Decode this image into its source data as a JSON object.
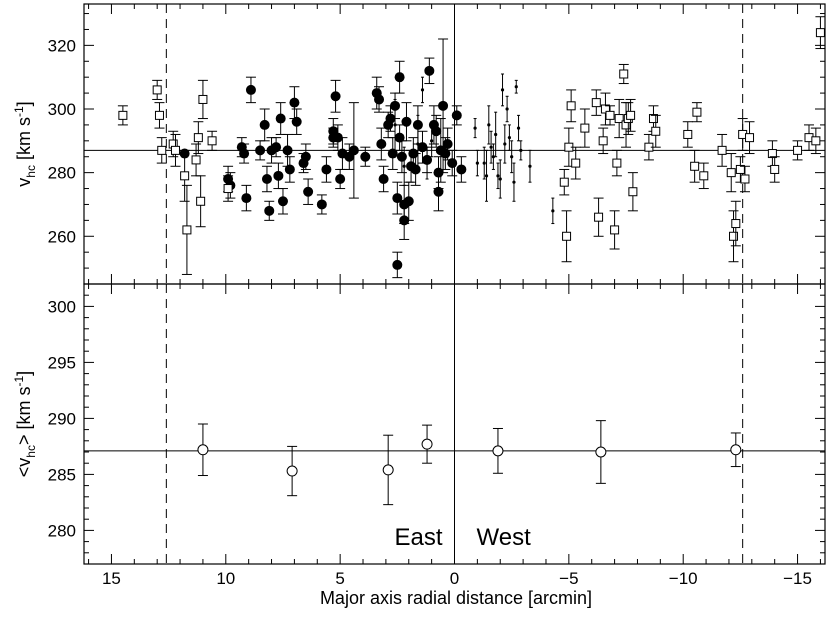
{
  "chart_data": [
    {
      "panel": "top",
      "type": "scatter",
      "title": "",
      "xlabel": "Major axis radial distance  [arcmin]",
      "ylabel": "v_hc  [km s^-1]",
      "ylabel_parts": {
        "main": "v",
        "sub": "hc",
        "unit_pre": "[km s",
        "unit_sup": "-1",
        "unit_post": "]"
      },
      "xlim": [
        16.2,
        -16.2
      ],
      "ylim": [
        245,
        333
      ],
      "x_ticks": [
        15,
        10,
        5,
        0,
        -5,
        -10,
        -15
      ],
      "x_tick_labels": [
        "15",
        "10",
        "5",
        "0",
        "−5",
        "−10",
        "−15"
      ],
      "y_ticks": [
        260,
        280,
        300,
        320
      ],
      "y_tick_labels": [
        "260",
        "280",
        "300",
        "320"
      ],
      "reference_line": 287,
      "center_line_x": 0,
      "dashed_lines_x": [
        12.6,
        -12.6
      ],
      "series": [
        {
          "name": "filled circles",
          "marker": "filled-circle",
          "points": [
            [
              11.8,
              286,
              0
            ],
            [
              9.9,
              278,
              4
            ],
            [
              9.8,
              276,
              4
            ],
            [
              9.3,
              288,
              3
            ],
            [
              9.2,
              286,
              3
            ],
            [
              9.1,
              272,
              4
            ],
            [
              8.9,
              306,
              4
            ],
            [
              8.5,
              287,
              3
            ],
            [
              8.3,
              295,
              5
            ],
            [
              8.2,
              278,
              4
            ],
            [
              8.1,
              268,
              3
            ],
            [
              8.0,
              287,
              4
            ],
            [
              7.8,
              288,
              3
            ],
            [
              7.7,
              279,
              4
            ],
            [
              7.6,
              297,
              5
            ],
            [
              7.5,
              271,
              4
            ],
            [
              7.3,
              287,
              5
            ],
            [
              7.2,
              281,
              4
            ],
            [
              7.0,
              302,
              5
            ],
            [
              6.9,
              296,
              4
            ],
            [
              6.6,
              283,
              3
            ],
            [
              6.5,
              285,
              4
            ],
            [
              6.4,
              274,
              4
            ],
            [
              5.8,
              270,
              3
            ],
            [
              5.6,
              281,
              4
            ],
            [
              5.3,
              293,
              4
            ],
            [
              5.3,
              291,
              3
            ],
            [
              5.2,
              304,
              5
            ],
            [
              5.1,
              291,
              4
            ],
            [
              5.0,
              278,
              3
            ],
            [
              4.9,
              286,
              5
            ],
            [
              4.6,
              285,
              4
            ],
            [
              4.4,
              287,
              15
            ],
            [
              3.9,
              285,
              3
            ],
            [
              3.4,
              305,
              5
            ],
            [
              3.3,
              303,
              4
            ],
            [
              3.2,
              289,
              5
            ],
            [
              3.1,
              278,
              4
            ],
            [
              2.9,
              295,
              4
            ],
            [
              2.8,
              297,
              4
            ],
            [
              2.7,
              286,
              5
            ],
            [
              2.6,
              301,
              4
            ],
            [
              2.5,
              272,
              5
            ],
            [
              2.5,
              251,
              4
            ],
            [
              2.4,
              310,
              5
            ],
            [
              2.4,
              291,
              4
            ],
            [
              2.3,
              285,
              5
            ],
            [
              2.2,
              265,
              6
            ],
            [
              2.2,
              270,
              6
            ],
            [
              2.1,
              296,
              6
            ],
            [
              2.0,
              271,
              6
            ],
            [
              1.9,
              282,
              5
            ],
            [
              1.8,
              286,
              5
            ],
            [
              1.7,
              281,
              5
            ],
            [
              1.6,
              295,
              6
            ],
            [
              1.4,
              288,
              5
            ],
            [
              1.2,
              284,
              4
            ],
            [
              1.1,
              312,
              4
            ],
            [
              0.9,
              295,
              6
            ],
            [
              0.8,
              293,
              5
            ],
            [
              0.7,
              280,
              5
            ],
            [
              0.7,
              274,
              6
            ],
            [
              0.6,
              287,
              10
            ],
            [
              0.5,
              301,
              21
            ],
            [
              0.4,
              286,
              5
            ],
            [
              0.3,
              289,
              5
            ],
            [
              0.1,
              283,
              4
            ],
            [
              -0.1,
              298,
              3
            ],
            [
              -0.3,
              281,
              4
            ]
          ]
        },
        {
          "name": "small dots",
          "marker": "small-dot",
          "points": [
            [
              2.6,
              295,
              8
            ],
            [
              2.2,
              282,
              6
            ],
            [
              1.6,
              289,
              9
            ],
            [
              1.4,
              306,
              4
            ],
            [
              1.2,
              283,
              5
            ],
            [
              1.0,
              290,
              5
            ],
            [
              -0.9,
              294,
              3
            ],
            [
              -1.0,
              283,
              4
            ],
            [
              -1.3,
              283,
              5
            ],
            [
              -1.4,
              279,
              8
            ],
            [
              -1.5,
              295,
              6
            ],
            [
              -1.6,
              288,
              5
            ],
            [
              -1.7,
              285,
              4
            ],
            [
              -1.8,
              292,
              7
            ],
            [
              -1.9,
              279,
              4
            ],
            [
              -2.0,
              278,
              6
            ],
            [
              -2.1,
              306,
              5
            ],
            [
              -2.2,
              289,
              6
            ],
            [
              -2.3,
              300,
              4
            ],
            [
              -2.4,
              291,
              4
            ],
            [
              -2.5,
              285,
              5
            ],
            [
              -2.6,
              277,
              6
            ],
            [
              -2.7,
              307,
              2
            ],
            [
              -2.8,
              294,
              4
            ],
            [
              -2.9,
              287,
              3
            ],
            [
              -3.3,
              282,
              5
            ],
            [
              -4.3,
              268,
              4
            ]
          ]
        },
        {
          "name": "open squares",
          "marker": "open-square",
          "points": [
            [
              14.5,
              298,
              3
            ],
            [
              13.0,
              306,
              3
            ],
            [
              12.9,
              298,
              4
            ],
            [
              12.8,
              287,
              4
            ],
            [
              12.3,
              289,
              4
            ],
            [
              12.2,
              287,
              5
            ],
            [
              11.8,
              279,
              8
            ],
            [
              11.7,
              262,
              14
            ],
            [
              11.3,
              284,
              5
            ],
            [
              11.2,
              291,
              5
            ],
            [
              11.1,
              271,
              8
            ],
            [
              11.0,
              303,
              6
            ],
            [
              10.6,
              290,
              3
            ],
            [
              9.9,
              275,
              4
            ],
            [
              -5.0,
              288,
              6
            ],
            [
              -4.8,
              277,
              4
            ],
            [
              -4.9,
              260,
              8
            ],
            [
              -5.1,
              301,
              5
            ],
            [
              -5.3,
              283,
              5
            ],
            [
              -5.7,
              294,
              6
            ],
            [
              -6.2,
              302,
              4
            ],
            [
              -6.3,
              266,
              6
            ],
            [
              -6.5,
              290,
              4
            ],
            [
              -6.6,
              300,
              5
            ],
            [
              -6.8,
              298,
              3
            ],
            [
              -7.0,
              262,
              6
            ],
            [
              -7.1,
              283,
              4
            ],
            [
              -7.2,
              297,
              6
            ],
            [
              -7.4,
              311,
              3
            ],
            [
              -7.5,
              295,
              7
            ],
            [
              -7.6,
              297,
              5
            ],
            [
              -7.7,
              298,
              5
            ],
            [
              -7.8,
              274,
              6
            ],
            [
              -8.5,
              288,
              4
            ],
            [
              -8.7,
              297,
              4
            ],
            [
              -8.8,
              293,
              5
            ],
            [
              -10.2,
              292,
              4
            ],
            [
              -10.5,
              282,
              5
            ],
            [
              -10.6,
              299,
              3
            ],
            [
              -10.9,
              279,
              4
            ],
            [
              -11.7,
              287,
              5
            ],
            [
              -12.1,
              280,
              6
            ],
            [
              -12.2,
              260,
              8
            ],
            [
              -12.3,
              264,
              7
            ],
            [
              -12.5,
              281,
              4
            ],
            [
              -12.6,
              292,
              5
            ],
            [
              -12.7,
              278,
              4
            ],
            [
              -12.9,
              291,
              5
            ],
            [
              -13.9,
              286,
              4
            ],
            [
              -14.0,
              281,
              4
            ],
            [
              -15.0,
              287,
              3
            ],
            [
              -15.5,
              291,
              4
            ],
            [
              -15.8,
              290,
              4
            ],
            [
              -16.0,
              324,
              5
            ]
          ]
        }
      ]
    },
    {
      "panel": "bottom",
      "type": "scatter",
      "xlabel": "Major axis radial distance  [arcmin]",
      "ylabel": "<v_hc>  [km s^-1]",
      "ylabel_parts": {
        "pre": "<v",
        "sub": "hc",
        "post": ">",
        "unit_pre": "[km s",
        "unit_sup": "-1",
        "unit_post": "]"
      },
      "xlim": [
        16.2,
        -16.2
      ],
      "ylim": [
        277,
        302
      ],
      "x_ticks": [
        15,
        10,
        5,
        0,
        -5,
        -10,
        -15
      ],
      "x_tick_labels": [
        "15",
        "10",
        "5",
        "0",
        "−5",
        "−10",
        "−15"
      ],
      "y_ticks": [
        280,
        285,
        290,
        295,
        300
      ],
      "y_tick_labels": [
        "280",
        "285",
        "290",
        "295",
        "300"
      ],
      "reference_line": 287.1,
      "center_line_x": 0,
      "dashed_lines_x": [
        12.6,
        -12.6
      ],
      "annotations": [
        "East",
        "West"
      ],
      "series": [
        {
          "name": "binned means",
          "marker": "open-circle",
          "points": [
            [
              11.0,
              287.2,
              2.3
            ],
            [
              7.1,
              285.3,
              2.2
            ],
            [
              2.9,
              285.4,
              3.1
            ],
            [
              1.2,
              287.7,
              1.7
            ],
            [
              -1.9,
              287.1,
              2.0
            ],
            [
              -6.4,
              287.0,
              2.8
            ],
            [
              -12.3,
              287.2,
              1.5
            ]
          ]
        }
      ]
    }
  ]
}
